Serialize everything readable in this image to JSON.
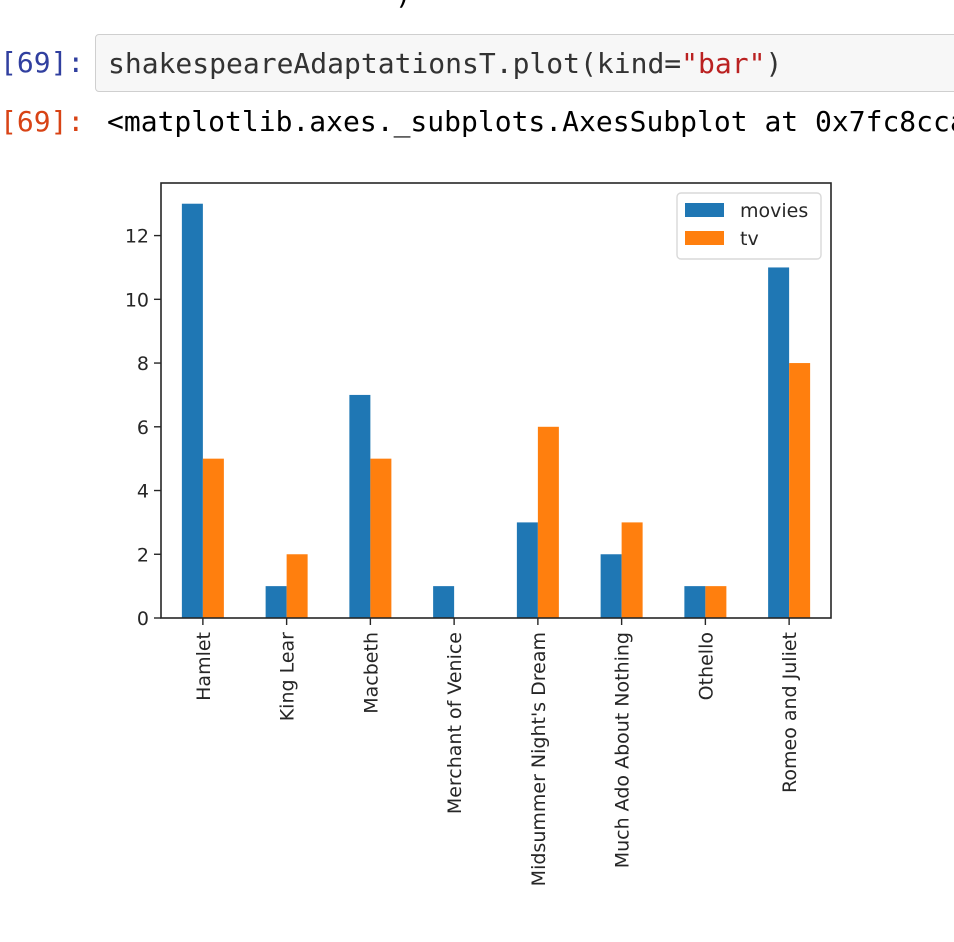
{
  "cell": {
    "prompt_in": "[69]:",
    "prompt_out": "[69]:",
    "code_prefix": "shakespeareAdaptationsT.plot(kind=",
    "code_string": "\"bar\"",
    "code_suffix": ")",
    "output_text": "<matplotlib.axes._subplots.AxesSubplot at 0x7fc8cca",
    "top_fragment": ")"
  },
  "chart_data": {
    "type": "bar",
    "categories": [
      "Hamlet",
      "King Lear",
      "Macbeth",
      "Merchant of Venice",
      "Midsummer Night's Dream",
      "Much Ado About Nothing",
      "Othello",
      "Romeo and Juliet"
    ],
    "series": [
      {
        "name": "movies",
        "color": "#1f77b4",
        "values": [
          13,
          1,
          7,
          1,
          3,
          2,
          1,
          11
        ]
      },
      {
        "name": "tv",
        "color": "#ff7f0e",
        "values": [
          5,
          2,
          5,
          0,
          6,
          3,
          1,
          8
        ]
      }
    ],
    "yticks": [
      0,
      2,
      4,
      6,
      8,
      10,
      12
    ],
    "ylim": [
      0,
      13.65
    ],
    "legend_position": "top-right",
    "grid": false
  }
}
